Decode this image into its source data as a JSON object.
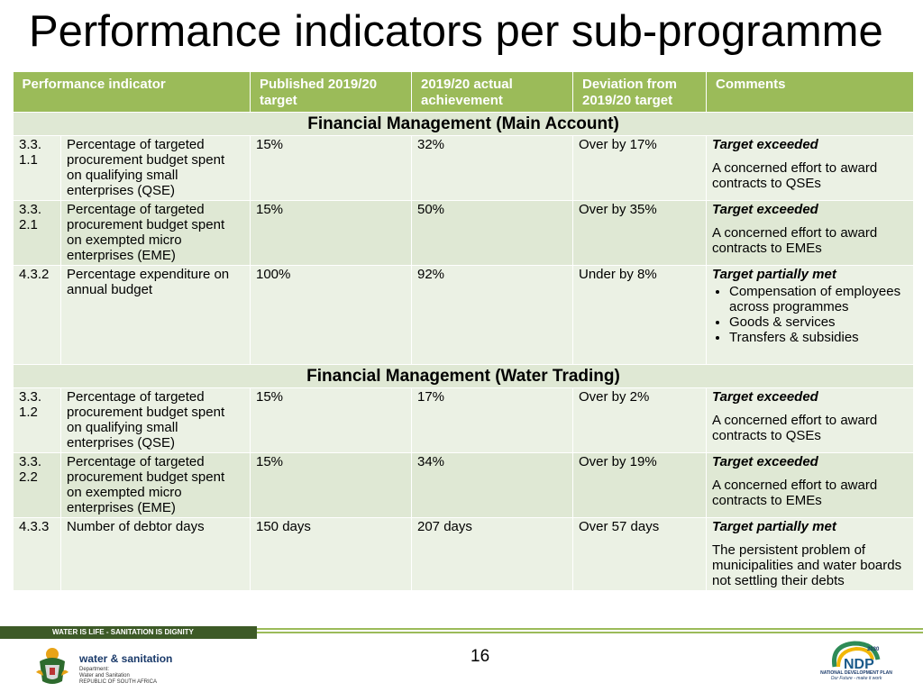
{
  "slide": {
    "title": "Performance indicators per sub-programme",
    "page_number": "16"
  },
  "table": {
    "headers": [
      "Performance indicator",
      "Published 2019/20 target",
      "2019/20  actual achievement",
      "Deviation from 2019/20 target",
      "Comments"
    ],
    "sections": [
      {
        "title": "Financial Management (Main Account)",
        "rows": [
          {
            "no": "3.3. 1.1",
            "indicator": "Percentage of targeted procurement budget spent on qualifying small enterprises (QSE)",
            "target": "15%",
            "actual": "32%",
            "deviation": "Over by 17%",
            "status": "Target exceeded",
            "comment": "A concerned effort to award contracts to QSEs"
          },
          {
            "no": "3.3. 2.1",
            "indicator": "Percentage of targeted procurement budget spent on exempted micro enterprises (EME)",
            "target": "15%",
            "actual": "50%",
            "deviation": "Over by 35%",
            "status": "Target exceeded",
            "comment": "A concerned effort to award contracts to EMEs"
          },
          {
            "no": "4.3.2",
            "indicator": "Percentage expenditure on annual budget",
            "target": "100%",
            "actual": "92%",
            "deviation": "Under by 8%",
            "status": "Target partially met",
            "bullets": [
              "Compensation of employees across programmes",
              "Goods & services",
              "Transfers & subsidies"
            ]
          }
        ]
      },
      {
        "title": "Financial Management (Water Trading)",
        "rows": [
          {
            "no": "3.3. 1.2",
            "indicator": "Percentage of targeted procurement budget spent on qualifying small enterprises (QSE)",
            "target": "15%",
            "actual": "17%",
            "deviation": "Over by 2%",
            "status": "Target exceeded",
            "comment": "A concerned effort to award contracts to QSEs"
          },
          {
            "no": "3.3. 2.2",
            "indicator": "Percentage of targeted procurement budget spent on exempted micro enterprises (EME)",
            "target": "15%",
            "actual": "34%",
            "deviation": "Over by 19%",
            "status": "Target exceeded",
            "comment": "A concerned effort to award contracts to EMEs"
          },
          {
            "no": "4.3.3",
            "indicator": "Number of debtor days",
            "target": "150 days",
            "actual": "207 days",
            "deviation": "Over 57 days",
            "status": "Target partially met",
            "comment": "The persistent problem of municipalities and water boards not settling their debts"
          }
        ]
      }
    ]
  },
  "footer": {
    "slogan": "WATER IS LIFE - SANITATION IS DIGNITY",
    "dept_name": "water & sanitation",
    "dept_sub": [
      "Department:",
      "Water and Sanitation",
      "REPUBLIC OF SOUTH AFRICA"
    ],
    "ndp_label": "NATIONAL DEVELOPMENT PLAN",
    "ndp_tagline": "Our Future - make it work",
    "ndp_year": "2030",
    "ndp_mark": "NDP"
  },
  "colors": {
    "header_green": "#9bbb59",
    "row_light": "#ebf1e4",
    "row_dark": "#dfe8d4",
    "footer_dark_green": "#3d5a27"
  }
}
